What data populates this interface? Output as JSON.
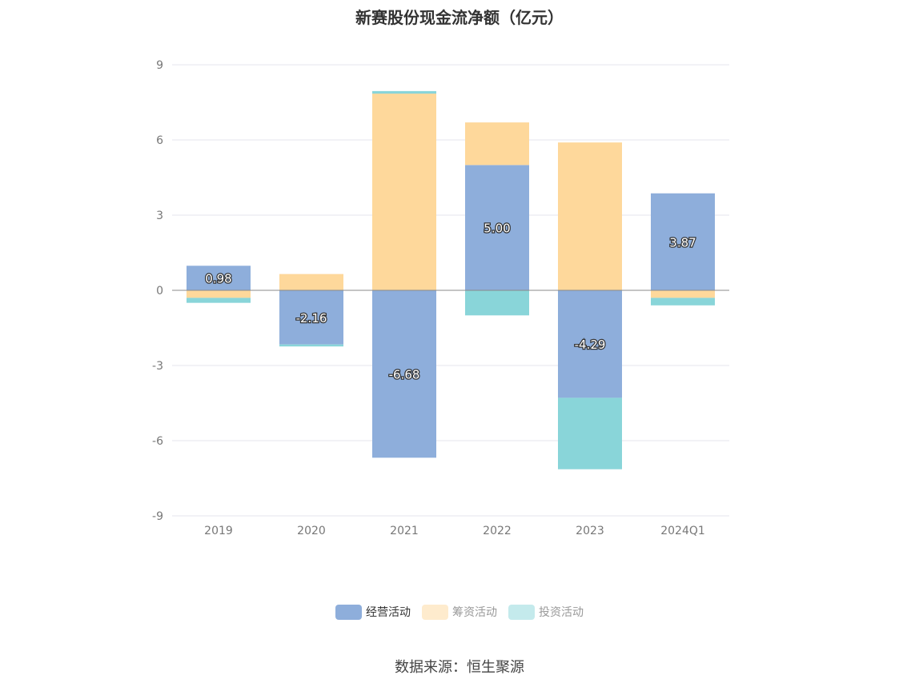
{
  "chart_data": {
    "type": "bar",
    "stacked": true,
    "title": "新赛股份现金流净额（亿元）",
    "categories": [
      "2019",
      "2020",
      "2021",
      "2022",
      "2023",
      "2024Q1"
    ],
    "series": [
      {
        "name": "经营活动",
        "color": "#8eaedb",
        "values": [
          0.98,
          -2.16,
          -6.68,
          5.0,
          -4.29,
          3.87
        ],
        "labels": [
          "0.98",
          "-2.16",
          "-6.68",
          "5.00",
          "-4.29",
          "3.87"
        ]
      },
      {
        "name": "筹资活动",
        "color": "#fed89b",
        "values": [
          -0.3,
          0.65,
          7.85,
          1.7,
          5.9,
          -0.3
        ]
      },
      {
        "name": "投资活动",
        "color": "#89d5d9",
        "values": [
          -0.2,
          -0.08,
          0.1,
          -1.0,
          -2.85,
          -0.3
        ]
      }
    ],
    "ylim": [
      -9,
      9
    ],
    "yticks": [
      9,
      6,
      3,
      0,
      -3,
      -6,
      -9
    ],
    "grid": true,
    "legend_position": "bottom",
    "legend_inactive_color": "#999999"
  },
  "source_text": "数据来源：恒生聚源"
}
